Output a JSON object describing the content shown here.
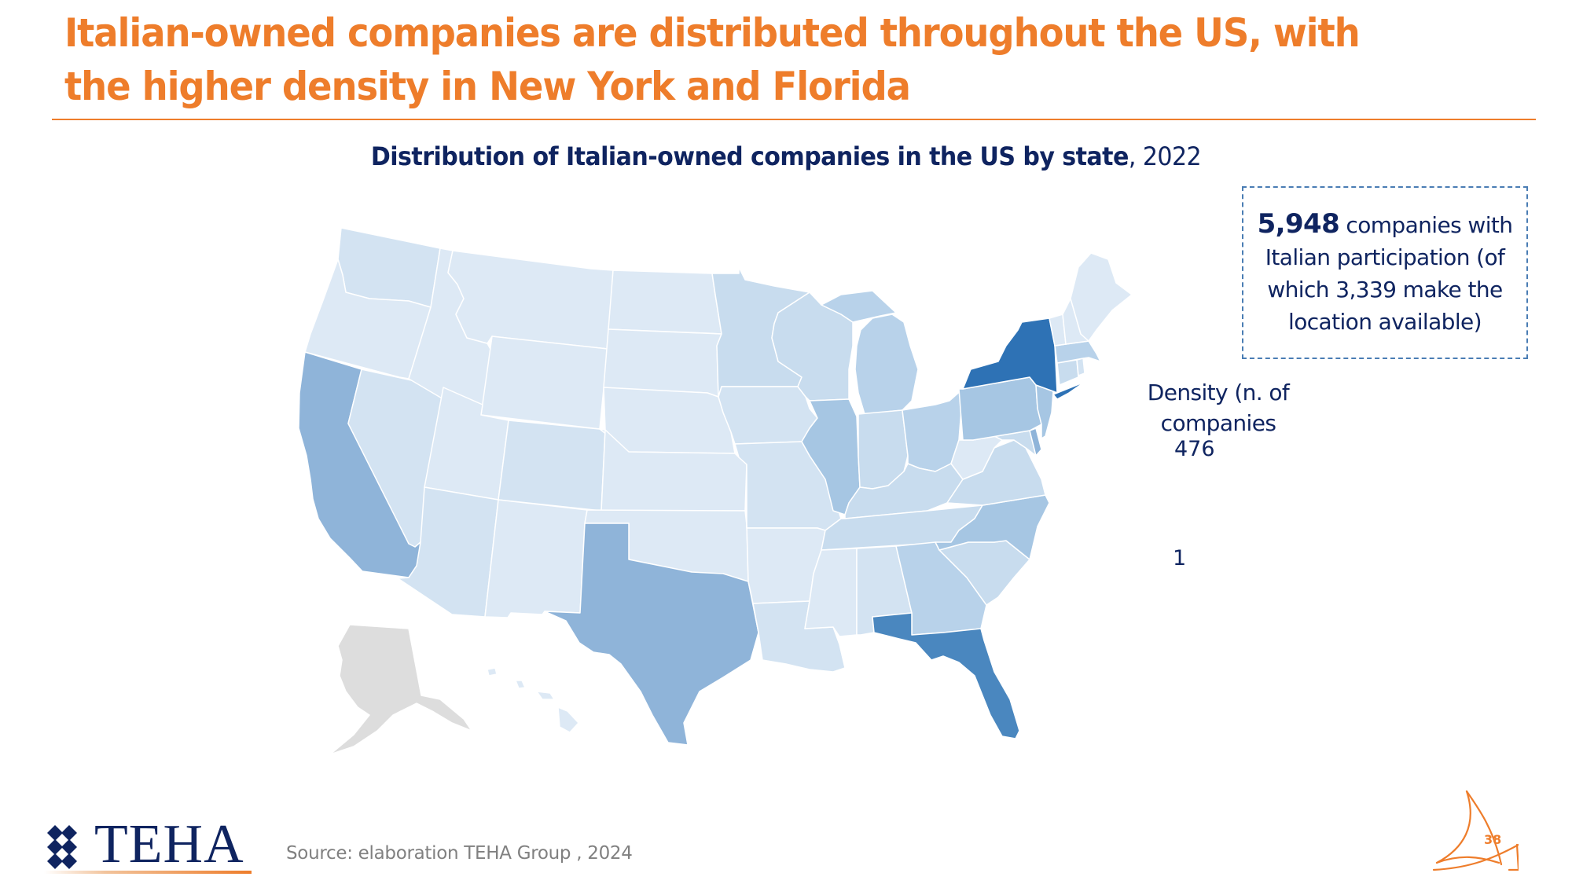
{
  "slide": {
    "title": "Italian-owned companies are distributed throughout the US, with the higher density in New York and Florida",
    "page_number": "38",
    "source": "Source: elaboration TEHA Group , 2024",
    "logo_text": "TEHA"
  },
  "chart": {
    "title_bold": "Distribution of Italian-owned companies in the US by state",
    "title_year": ", 2022"
  },
  "callout": {
    "highlight": "5,948",
    "text": " companies with Italian participation (of which 3,339 make the location available)"
  },
  "legend": {
    "title": "Density (n. of companies",
    "max_label": "476",
    "min_label": "1"
  },
  "colors": {
    "accent": "#EE7D2B",
    "navy": "#0F2460",
    "no_data": "#DDDDDD",
    "scale": [
      "#DDE9F5",
      "#D3E3F2",
      "#C8DCEE",
      "#B8D2EA",
      "#A6C6E3",
      "#8FB4D9",
      "#4A87BF",
      "#2E72B5"
    ]
  },
  "chart_data": {
    "type": "choropleth",
    "title": "Distribution of Italian-owned companies in the US by state, 2022",
    "value_label": "Density (n. of companies",
    "range": [
      1,
      476
    ],
    "note": "levels are relative shading 0-7 read from the map; only the range endpoints are printed",
    "states": [
      {
        "id": "WA",
        "level": 1
      },
      {
        "id": "OR",
        "level": 0
      },
      {
        "id": "CA",
        "level": 5
      },
      {
        "id": "NV",
        "level": 1
      },
      {
        "id": "ID",
        "level": 0
      },
      {
        "id": "MT",
        "level": 0
      },
      {
        "id": "WY",
        "level": 0
      },
      {
        "id": "UT",
        "level": 0
      },
      {
        "id": "AZ",
        "level": 1
      },
      {
        "id": "CO",
        "level": 1
      },
      {
        "id": "NM",
        "level": 0
      },
      {
        "id": "ND",
        "level": 0
      },
      {
        "id": "SD",
        "level": 0
      },
      {
        "id": "NE",
        "level": 0
      },
      {
        "id": "KS",
        "level": 0
      },
      {
        "id": "OK",
        "level": 0
      },
      {
        "id": "TX",
        "level": 5
      },
      {
        "id": "MN",
        "level": 2
      },
      {
        "id": "IA",
        "level": 1
      },
      {
        "id": "MO",
        "level": 1
      },
      {
        "id": "AR",
        "level": 0
      },
      {
        "id": "LA",
        "level": 1
      },
      {
        "id": "WI",
        "level": 2
      },
      {
        "id": "IL",
        "level": 4
      },
      {
        "id": "MI",
        "level": 3
      },
      {
        "id": "IN",
        "level": 2
      },
      {
        "id": "OH",
        "level": 3
      },
      {
        "id": "KY",
        "level": 2
      },
      {
        "id": "TN",
        "level": 2
      },
      {
        "id": "MS",
        "level": 0
      },
      {
        "id": "AL",
        "level": 1
      },
      {
        "id": "GA",
        "level": 3
      },
      {
        "id": "FL",
        "level": 6
      },
      {
        "id": "SC",
        "level": 2
      },
      {
        "id": "NC",
        "level": 4
      },
      {
        "id": "VA",
        "level": 2
      },
      {
        "id": "WV",
        "level": 0
      },
      {
        "id": "PA",
        "level": 4
      },
      {
        "id": "NY",
        "level": 7
      },
      {
        "id": "NJ",
        "level": 4
      },
      {
        "id": "DE",
        "level": 5
      },
      {
        "id": "MD",
        "level": 2
      },
      {
        "id": "CT",
        "level": 2
      },
      {
        "id": "RI",
        "level": 1
      },
      {
        "id": "MA",
        "level": 3
      },
      {
        "id": "VT",
        "level": 0
      },
      {
        "id": "NH",
        "level": 0
      },
      {
        "id": "ME",
        "level": 0
      },
      {
        "id": "HI",
        "level": 0
      },
      {
        "id": "AK",
        "level": -1
      }
    ]
  }
}
